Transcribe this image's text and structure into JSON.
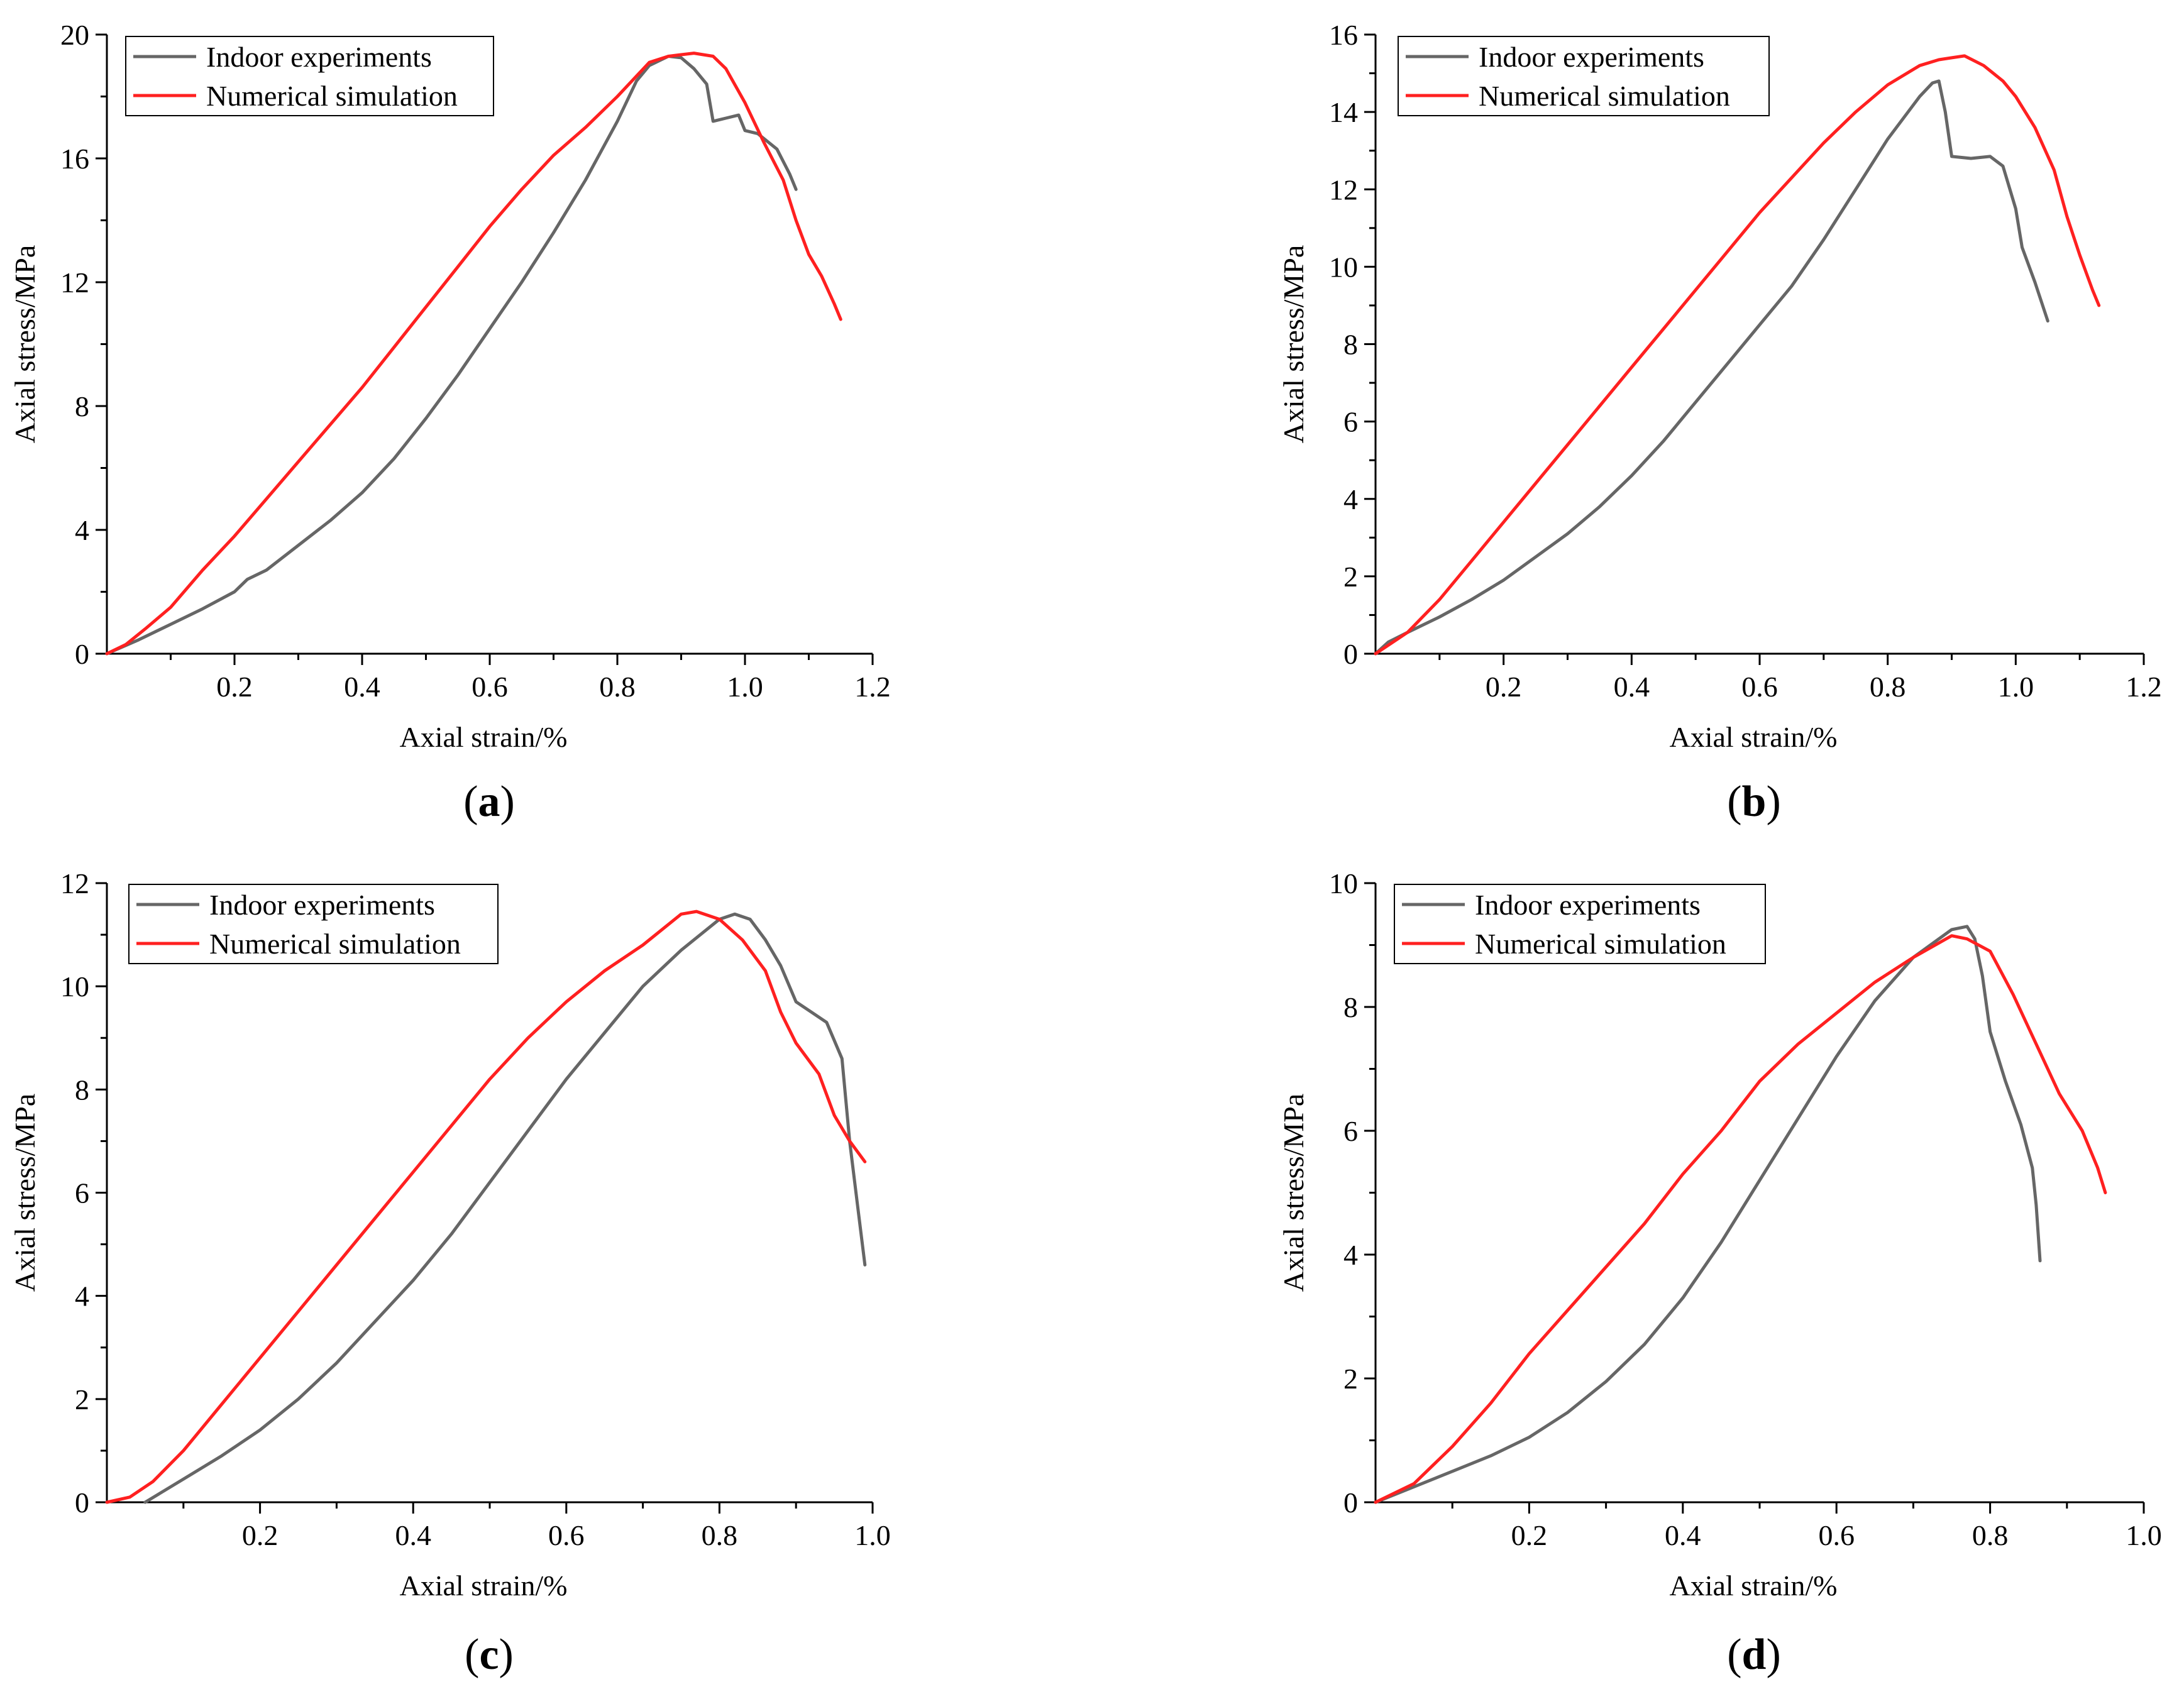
{
  "chart_data": [
    {
      "type": "line",
      "panel_label": "(a)",
      "xlabel": "Axial strain/%",
      "ylabel": "Axial stress/MPa",
      "xlim": [
        0,
        1.2
      ],
      "ylim": [
        0,
        20
      ],
      "xticks": [
        "0.2",
        "0.4",
        "0.6",
        "0.8",
        "1.0",
        "1.2"
      ],
      "yticks": [
        "0",
        "4",
        "8",
        "12",
        "16",
        "20"
      ],
      "legend": "top-left",
      "series": [
        {
          "name": "Indoor experiments",
          "color": "#666666",
          "points": [
            [
              0,
              0
            ],
            [
              0.05,
              0.45
            ],
            [
              0.1,
              0.95
            ],
            [
              0.15,
              1.45
            ],
            [
              0.2,
              2.0
            ],
            [
              0.22,
              2.4
            ],
            [
              0.25,
              2.7
            ],
            [
              0.3,
              3.5
            ],
            [
              0.35,
              4.3
            ],
            [
              0.4,
              5.2
            ],
            [
              0.45,
              6.3
            ],
            [
              0.5,
              7.6
            ],
            [
              0.55,
              9.0
            ],
            [
              0.6,
              10.5
            ],
            [
              0.65,
              12.0
            ],
            [
              0.7,
              13.6
            ],
            [
              0.75,
              15.3
            ],
            [
              0.8,
              17.2
            ],
            [
              0.83,
              18.5
            ],
            [
              0.85,
              19.0
            ],
            [
              0.88,
              19.3
            ],
            [
              0.9,
              19.25
            ],
            [
              0.92,
              18.9
            ],
            [
              0.94,
              18.4
            ],
            [
              0.95,
              17.2
            ],
            [
              0.97,
              17.3
            ],
            [
              0.99,
              17.4
            ],
            [
              1.0,
              16.9
            ],
            [
              1.02,
              16.8
            ],
            [
              1.05,
              16.3
            ],
            [
              1.07,
              15.5
            ],
            [
              1.08,
              15.0
            ]
          ]
        },
        {
          "name": "Numerical simulation",
          "color": "#ff2020",
          "points": [
            [
              0,
              0
            ],
            [
              0.03,
              0.3
            ],
            [
              0.06,
              0.8
            ],
            [
              0.1,
              1.5
            ],
            [
              0.15,
              2.7
            ],
            [
              0.2,
              3.8
            ],
            [
              0.25,
              5.0
            ],
            [
              0.3,
              6.2
            ],
            [
              0.35,
              7.4
            ],
            [
              0.4,
              8.6
            ],
            [
              0.45,
              9.9
            ],
            [
              0.5,
              11.2
            ],
            [
              0.55,
              12.5
            ],
            [
              0.6,
              13.8
            ],
            [
              0.65,
              15.0
            ],
            [
              0.7,
              16.1
            ],
            [
              0.75,
              17.0
            ],
            [
              0.8,
              18.0
            ],
            [
              0.85,
              19.1
            ],
            [
              0.88,
              19.3
            ],
            [
              0.9,
              19.35
            ],
            [
              0.92,
              19.4
            ],
            [
              0.95,
              19.3
            ],
            [
              0.97,
              18.9
            ],
            [
              1.0,
              17.8
            ],
            [
              1.03,
              16.5
            ],
            [
              1.06,
              15.3
            ],
            [
              1.08,
              14.0
            ],
            [
              1.1,
              12.9
            ],
            [
              1.12,
              12.2
            ],
            [
              1.14,
              11.3
            ],
            [
              1.15,
              10.8
            ]
          ]
        }
      ]
    },
    {
      "type": "line",
      "panel_label": "(b)",
      "xlabel": "Axial strain/%",
      "ylabel": "Axial stress/MPa",
      "xlim": [
        0,
        1.2
      ],
      "ylim": [
        0,
        16
      ],
      "xticks": [
        "0.2",
        "0.4",
        "0.6",
        "0.8",
        "1.0",
        "1.2"
      ],
      "yticks": [
        "0",
        "2",
        "4",
        "6",
        "8",
        "10",
        "12",
        "14",
        "16"
      ],
      "legend": "top-right",
      "series": [
        {
          "name": "Indoor experiments",
          "color": "#666666",
          "points": [
            [
              0,
              0
            ],
            [
              0.02,
              0.3
            ],
            [
              0.05,
              0.55
            ],
            [
              0.1,
              0.95
            ],
            [
              0.15,
              1.4
            ],
            [
              0.2,
              1.9
            ],
            [
              0.25,
              2.5
            ],
            [
              0.3,
              3.1
            ],
            [
              0.35,
              3.8
            ],
            [
              0.4,
              4.6
            ],
            [
              0.45,
              5.5
            ],
            [
              0.5,
              6.5
            ],
            [
              0.55,
              7.5
            ],
            [
              0.6,
              8.5
            ],
            [
              0.65,
              9.5
            ],
            [
              0.7,
              10.7
            ],
            [
              0.75,
              12.0
            ],
            [
              0.8,
              13.3
            ],
            [
              0.85,
              14.4
            ],
            [
              0.87,
              14.75
            ],
            [
              0.88,
              14.8
            ],
            [
              0.89,
              14.0
            ],
            [
              0.9,
              12.85
            ],
            [
              0.93,
              12.8
            ],
            [
              0.96,
              12.85
            ],
            [
              0.98,
              12.6
            ],
            [
              1.0,
              11.5
            ],
            [
              1.01,
              10.5
            ],
            [
              1.03,
              9.6
            ],
            [
              1.05,
              8.6
            ]
          ]
        },
        {
          "name": "Numerical simulation",
          "color": "#ff2020",
          "points": [
            [
              0,
              0
            ],
            [
              0.05,
              0.55
            ],
            [
              0.1,
              1.4
            ],
            [
              0.15,
              2.4
            ],
            [
              0.2,
              3.4
            ],
            [
              0.25,
              4.4
            ],
            [
              0.3,
              5.4
            ],
            [
              0.35,
              6.4
            ],
            [
              0.4,
              7.4
            ],
            [
              0.45,
              8.4
            ],
            [
              0.5,
              9.4
            ],
            [
              0.55,
              10.4
            ],
            [
              0.6,
              11.4
            ],
            [
              0.65,
              12.3
            ],
            [
              0.7,
              13.2
            ],
            [
              0.75,
              14.0
            ],
            [
              0.8,
              14.7
            ],
            [
              0.85,
              15.2
            ],
            [
              0.88,
              15.35
            ],
            [
              0.9,
              15.4
            ],
            [
              0.92,
              15.45
            ],
            [
              0.95,
              15.2
            ],
            [
              0.98,
              14.8
            ],
            [
              1.0,
              14.4
            ],
            [
              1.03,
              13.6
            ],
            [
              1.06,
              12.5
            ],
            [
              1.08,
              11.3
            ],
            [
              1.1,
              10.3
            ],
            [
              1.12,
              9.4
            ],
            [
              1.13,
              9.0
            ]
          ]
        }
      ]
    },
    {
      "type": "line",
      "panel_label": "(c)",
      "xlabel": "Axial strain/%",
      "ylabel": "Axial stress/MPa",
      "xlim": [
        0,
        1.0
      ],
      "ylim": [
        0,
        12
      ],
      "xticks": [
        "0.2",
        "0.4",
        "0.6",
        "0.8",
        "1.0"
      ],
      "yticks": [
        "0",
        "2",
        "4",
        "6",
        "8",
        "10",
        "12"
      ],
      "legend": "top-left",
      "series": [
        {
          "name": "Indoor experiments",
          "color": "#666666",
          "points": [
            [
              0.05,
              0
            ],
            [
              0.1,
              0.45
            ],
            [
              0.15,
              0.9
            ],
            [
              0.2,
              1.4
            ],
            [
              0.25,
              2.0
            ],
            [
              0.3,
              2.7
            ],
            [
              0.35,
              3.5
            ],
            [
              0.4,
              4.3
            ],
            [
              0.45,
              5.2
            ],
            [
              0.5,
              6.2
            ],
            [
              0.55,
              7.2
            ],
            [
              0.6,
              8.2
            ],
            [
              0.65,
              9.1
            ],
            [
              0.7,
              10.0
            ],
            [
              0.75,
              10.7
            ],
            [
              0.8,
              11.3
            ],
            [
              0.82,
              11.4
            ],
            [
              0.84,
              11.3
            ],
            [
              0.86,
              10.9
            ],
            [
              0.88,
              10.4
            ],
            [
              0.9,
              9.7
            ],
            [
              0.92,
              9.5
            ],
            [
              0.94,
              9.3
            ],
            [
              0.96,
              8.6
            ],
            [
              0.97,
              7.0
            ],
            [
              0.98,
              5.8
            ],
            [
              0.99,
              4.6
            ]
          ]
        },
        {
          "name": "Numerical simulation",
          "color": "#ff2020",
          "points": [
            [
              0,
              0
            ],
            [
              0.03,
              0.1
            ],
            [
              0.06,
              0.4
            ],
            [
              0.1,
              1.0
            ],
            [
              0.15,
              1.9
            ],
            [
              0.2,
              2.8
            ],
            [
              0.25,
              3.7
            ],
            [
              0.3,
              4.6
            ],
            [
              0.35,
              5.5
            ],
            [
              0.4,
              6.4
            ],
            [
              0.45,
              7.3
            ],
            [
              0.5,
              8.2
            ],
            [
              0.55,
              9.0
            ],
            [
              0.6,
              9.7
            ],
            [
              0.65,
              10.3
            ],
            [
              0.7,
              10.8
            ],
            [
              0.75,
              11.4
            ],
            [
              0.77,
              11.45
            ],
            [
              0.8,
              11.3
            ],
            [
              0.83,
              10.9
            ],
            [
              0.86,
              10.3
            ],
            [
              0.88,
              9.5
            ],
            [
              0.9,
              8.9
            ],
            [
              0.93,
              8.3
            ],
            [
              0.95,
              7.5
            ],
            [
              0.97,
              7.0
            ],
            [
              0.99,
              6.6
            ]
          ]
        }
      ]
    },
    {
      "type": "line",
      "panel_label": "(d)",
      "xlabel": "Axial strain/%",
      "ylabel": "Axial stress/MPa",
      "xlim": [
        0,
        1.0
      ],
      "ylim": [
        0,
        10
      ],
      "xticks": [
        "0.2",
        "0.4",
        "0.6",
        "0.8",
        "1.0"
      ],
      "yticks": [
        "0",
        "2",
        "4",
        "6",
        "8",
        "10"
      ],
      "legend": "top-left",
      "series": [
        {
          "name": "Indoor experiments",
          "color": "#666666",
          "points": [
            [
              0,
              0
            ],
            [
              0.05,
              0.25
            ],
            [
              0.1,
              0.5
            ],
            [
              0.15,
              0.75
            ],
            [
              0.2,
              1.05
            ],
            [
              0.25,
              1.45
            ],
            [
              0.3,
              1.95
            ],
            [
              0.35,
              2.55
            ],
            [
              0.4,
              3.3
            ],
            [
              0.45,
              4.2
            ],
            [
              0.5,
              5.2
            ],
            [
              0.55,
              6.2
            ],
            [
              0.6,
              7.2
            ],
            [
              0.65,
              8.1
            ],
            [
              0.7,
              8.8
            ],
            [
              0.75,
              9.25
            ],
            [
              0.77,
              9.3
            ],
            [
              0.78,
              9.1
            ],
            [
              0.79,
              8.5
            ],
            [
              0.8,
              7.6
            ],
            [
              0.82,
              6.8
            ],
            [
              0.84,
              6.1
            ],
            [
              0.855,
              5.4
            ],
            [
              0.86,
              4.8
            ],
            [
              0.865,
              3.9
            ]
          ]
        },
        {
          "name": "Numerical simulation",
          "color": "#ff2020",
          "points": [
            [
              0,
              0
            ],
            [
              0.05,
              0.3
            ],
            [
              0.1,
              0.9
            ],
            [
              0.15,
              1.6
            ],
            [
              0.2,
              2.4
            ],
            [
              0.25,
              3.1
            ],
            [
              0.3,
              3.8
            ],
            [
              0.35,
              4.5
            ],
            [
              0.4,
              5.3
            ],
            [
              0.45,
              6.0
            ],
            [
              0.5,
              6.8
            ],
            [
              0.55,
              7.4
            ],
            [
              0.6,
              7.9
            ],
            [
              0.65,
              8.4
            ],
            [
              0.7,
              8.8
            ],
            [
              0.75,
              9.15
            ],
            [
              0.77,
              9.1
            ],
            [
              0.8,
              8.9
            ],
            [
              0.83,
              8.2
            ],
            [
              0.86,
              7.4
            ],
            [
              0.89,
              6.6
            ],
            [
              0.92,
              6.0
            ],
            [
              0.94,
              5.4
            ],
            [
              0.95,
              5.0
            ]
          ]
        }
      ]
    }
  ]
}
